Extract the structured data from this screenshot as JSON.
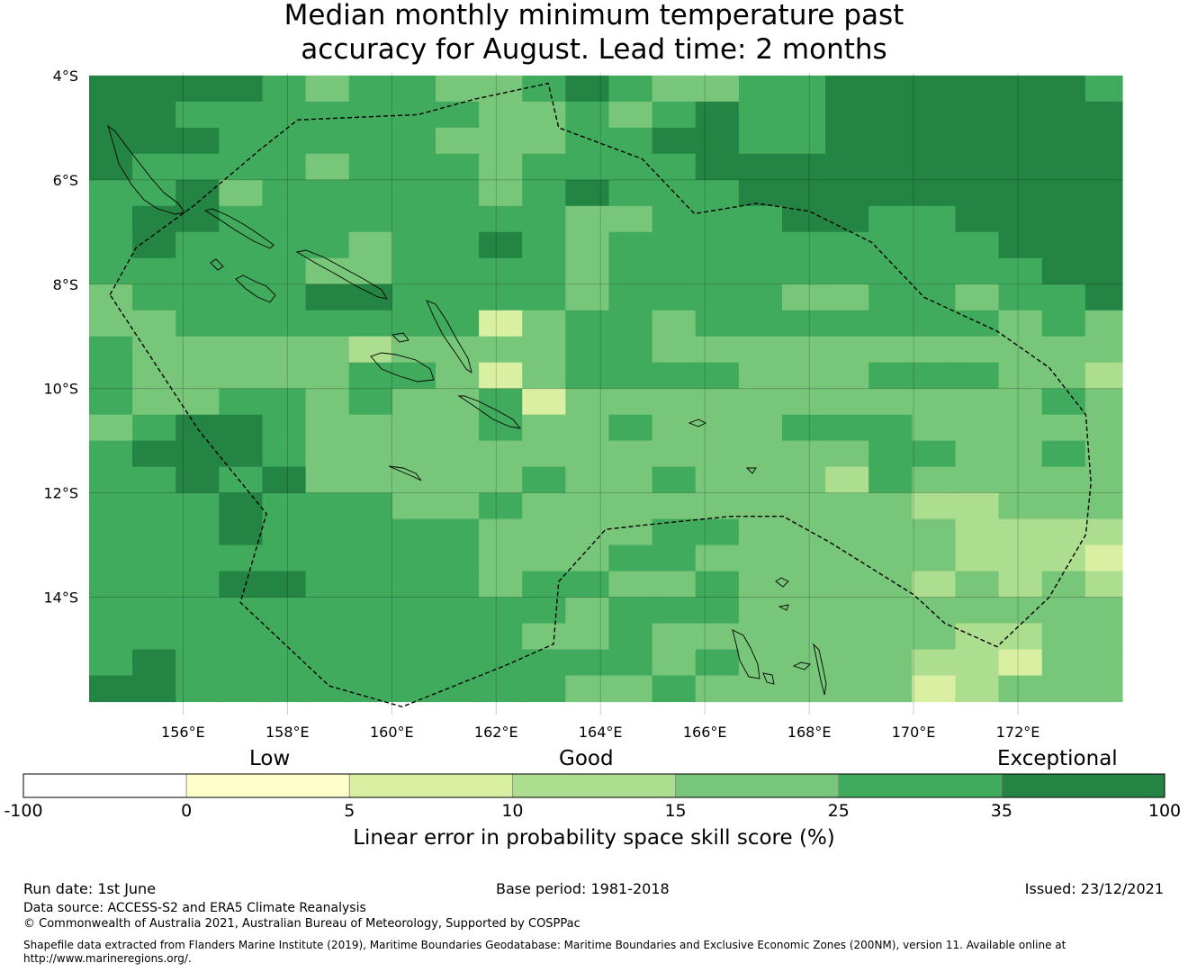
{
  "title_line1": "Median monthly minimum temperature past",
  "title_line2": "accuracy for August. Lead time: 2 months",
  "map": {
    "lon_range": [
      154.2,
      174.0
    ],
    "lat_range": [
      -16.25,
      -3.95
    ],
    "lat_ticks": [
      {
        "value": -4,
        "label": "4°S"
      },
      {
        "value": -6,
        "label": "6°S"
      },
      {
        "value": -8,
        "label": "8°S"
      },
      {
        "value": -10,
        "label": "10°S"
      },
      {
        "value": -12,
        "label": "12°S"
      },
      {
        "value": -14,
        "label": "14°S"
      }
    ],
    "lon_ticks": [
      {
        "value": 156,
        "label": "156°E"
      },
      {
        "value": 158,
        "label": "158°E"
      },
      {
        "value": 160,
        "label": "160°E"
      },
      {
        "value": 162,
        "label": "162°E"
      },
      {
        "value": 164,
        "label": "164°E"
      },
      {
        "value": 166,
        "label": "166°E"
      },
      {
        "value": 168,
        "label": "168°E"
      },
      {
        "value": 170,
        "label": "170°E"
      },
      {
        "value": 172,
        "label": "172°E"
      }
    ],
    "gridlines": true,
    "grid_color": "#000000",
    "eez_boundary": [
      [
        154.6,
        -8.2
      ],
      [
        155.1,
        -7.3
      ],
      [
        156.2,
        -6.5
      ],
      [
        157.5,
        -5.4
      ],
      [
        158.2,
        -4.85
      ],
      [
        160.5,
        -4.75
      ],
      [
        161.6,
        -4.45
      ],
      [
        163.0,
        -4.15
      ],
      [
        163.2,
        -5.0
      ],
      [
        164.8,
        -5.6
      ],
      [
        165.8,
        -6.65
      ],
      [
        167.0,
        -6.45
      ],
      [
        168.0,
        -6.6
      ],
      [
        169.2,
        -7.2
      ],
      [
        170.2,
        -8.25
      ],
      [
        171.6,
        -8.9
      ],
      [
        172.6,
        -9.6
      ],
      [
        173.3,
        -10.5
      ],
      [
        173.4,
        -11.8
      ],
      [
        173.3,
        -12.8
      ],
      [
        172.6,
        -14.0
      ],
      [
        171.6,
        -14.95
      ],
      [
        170.6,
        -14.5
      ],
      [
        170.0,
        -13.95
      ],
      [
        168.4,
        -12.95
      ],
      [
        167.5,
        -12.45
      ],
      [
        166.5,
        -12.45
      ],
      [
        165.0,
        -12.6
      ],
      [
        164.1,
        -12.7
      ],
      [
        163.2,
        -13.7
      ],
      [
        163.1,
        -14.9
      ],
      [
        162.2,
        -15.3
      ],
      [
        160.2,
        -16.1
      ],
      [
        158.8,
        -15.7
      ],
      [
        157.1,
        -14.1
      ],
      [
        157.6,
        -12.4
      ],
      [
        156.3,
        -10.8
      ],
      [
        154.6,
        -8.2
      ]
    ],
    "grid_cells": [
      {
        "lat": -4.25,
        "values": [
          35,
          35,
          35,
          35,
          25,
          15,
          25,
          25,
          15,
          15,
          25,
          35,
          25,
          15,
          15,
          25,
          25,
          35,
          35,
          35,
          35,
          35,
          35,
          25
        ]
      },
      {
        "lat": -4.75,
        "values": [
          35,
          35,
          25,
          25,
          25,
          25,
          25,
          25,
          25,
          15,
          15,
          25,
          15,
          25,
          35,
          25,
          25,
          35,
          35,
          35,
          35,
          35,
          35,
          35
        ]
      },
      {
        "lat": -5.25,
        "values": [
          35,
          35,
          35,
          25,
          25,
          25,
          25,
          25,
          15,
          15,
          15,
          25,
          25,
          35,
          35,
          25,
          25,
          35,
          35,
          35,
          35,
          35,
          35,
          35
        ]
      },
      {
        "lat": -5.75,
        "values": [
          35,
          25,
          25,
          25,
          25,
          15,
          25,
          25,
          25,
          15,
          25,
          25,
          25,
          25,
          35,
          35,
          35,
          35,
          35,
          35,
          35,
          35,
          35,
          35
        ]
      },
      {
        "lat": -6.25,
        "values": [
          25,
          25,
          35,
          15,
          25,
          25,
          25,
          25,
          25,
          15,
          25,
          35,
          25,
          25,
          25,
          35,
          35,
          35,
          35,
          35,
          35,
          35,
          35,
          35
        ]
      },
      {
        "lat": -6.75,
        "values": [
          25,
          35,
          35,
          25,
          25,
          25,
          25,
          25,
          25,
          25,
          25,
          15,
          15,
          25,
          25,
          25,
          35,
          35,
          25,
          25,
          35,
          35,
          35,
          35
        ]
      },
      {
        "lat": -7.25,
        "values": [
          25,
          35,
          25,
          25,
          25,
          25,
          15,
          25,
          25,
          35,
          25,
          15,
          25,
          25,
          25,
          25,
          25,
          25,
          25,
          25,
          25,
          35,
          35,
          35
        ]
      },
      {
        "lat": -7.75,
        "values": [
          25,
          25,
          25,
          25,
          25,
          15,
          15,
          25,
          25,
          25,
          25,
          15,
          25,
          25,
          25,
          25,
          25,
          25,
          25,
          25,
          25,
          25,
          35,
          35
        ]
      },
      {
        "lat": -8.25,
        "values": [
          15,
          25,
          25,
          25,
          25,
          35,
          35,
          25,
          25,
          25,
          25,
          15,
          25,
          25,
          25,
          25,
          15,
          15,
          25,
          25,
          15,
          25,
          25,
          35
        ]
      },
      {
        "lat": -8.75,
        "values": [
          15,
          15,
          25,
          25,
          25,
          25,
          25,
          25,
          25,
          5,
          15,
          25,
          25,
          15,
          25,
          25,
          25,
          25,
          25,
          25,
          25,
          15,
          25,
          15
        ]
      },
      {
        "lat": -9.25,
        "values": [
          25,
          15,
          15,
          15,
          15,
          15,
          10,
          15,
          15,
          15,
          15,
          25,
          25,
          15,
          15,
          15,
          15,
          15,
          15,
          15,
          15,
          15,
          15,
          15
        ]
      },
      {
        "lat": -9.75,
        "values": [
          25,
          15,
          15,
          15,
          15,
          15,
          25,
          25,
          15,
          5,
          15,
          25,
          25,
          25,
          25,
          15,
          15,
          15,
          25,
          25,
          25,
          15,
          15,
          10
        ]
      },
      {
        "lat": -10.25,
        "values": [
          25,
          15,
          15,
          25,
          25,
          15,
          25,
          15,
          15,
          25,
          5,
          15,
          15,
          15,
          15,
          15,
          15,
          15,
          15,
          15,
          15,
          15,
          25,
          15
        ]
      },
      {
        "lat": -10.75,
        "values": [
          15,
          25,
          35,
          35,
          25,
          15,
          15,
          15,
          15,
          25,
          15,
          15,
          25,
          15,
          15,
          15,
          25,
          25,
          25,
          15,
          15,
          15,
          15,
          15
        ]
      },
      {
        "lat": -11.25,
        "values": [
          25,
          35,
          35,
          35,
          25,
          15,
          15,
          15,
          15,
          15,
          15,
          15,
          15,
          15,
          15,
          15,
          15,
          15,
          25,
          25,
          15,
          15,
          25,
          15
        ]
      },
      {
        "lat": -11.75,
        "values": [
          25,
          25,
          35,
          25,
          35,
          15,
          15,
          15,
          15,
          15,
          25,
          15,
          15,
          25,
          15,
          15,
          15,
          10,
          25,
          15,
          15,
          15,
          15,
          15
        ]
      },
      {
        "lat": -12.25,
        "values": [
          25,
          25,
          25,
          35,
          25,
          25,
          25,
          15,
          15,
          25,
          15,
          15,
          15,
          15,
          15,
          15,
          15,
          15,
          15,
          10,
          10,
          15,
          15,
          15
        ]
      },
      {
        "lat": -12.75,
        "values": [
          25,
          25,
          25,
          35,
          25,
          25,
          25,
          25,
          25,
          15,
          15,
          15,
          15,
          25,
          25,
          15,
          15,
          15,
          15,
          15,
          10,
          10,
          10,
          10
        ]
      },
      {
        "lat": -13.25,
        "values": [
          25,
          25,
          25,
          25,
          25,
          25,
          25,
          25,
          25,
          15,
          15,
          15,
          25,
          25,
          15,
          15,
          15,
          15,
          15,
          15,
          10,
          10,
          10,
          5
        ]
      },
      {
        "lat": -13.75,
        "values": [
          25,
          25,
          25,
          35,
          35,
          25,
          25,
          25,
          25,
          15,
          25,
          25,
          15,
          15,
          25,
          15,
          15,
          15,
          15,
          10,
          15,
          10,
          15,
          10
        ]
      },
      {
        "lat": -14.25,
        "values": [
          25,
          25,
          25,
          25,
          25,
          25,
          25,
          25,
          25,
          25,
          25,
          15,
          25,
          25,
          25,
          15,
          15,
          15,
          15,
          15,
          15,
          15,
          15,
          15
        ]
      },
      {
        "lat": -14.75,
        "values": [
          25,
          25,
          25,
          25,
          25,
          25,
          25,
          25,
          25,
          25,
          15,
          15,
          25,
          15,
          15,
          15,
          15,
          15,
          15,
          15,
          10,
          10,
          15,
          15
        ]
      },
      {
        "lat": -15.25,
        "values": [
          25,
          35,
          25,
          25,
          25,
          25,
          25,
          25,
          25,
          25,
          25,
          25,
          25,
          15,
          25,
          15,
          15,
          15,
          15,
          10,
          10,
          5,
          15,
          15
        ]
      },
      {
        "lat": -15.75,
        "values": [
          35,
          35,
          25,
          25,
          25,
          25,
          25,
          25,
          25,
          25,
          25,
          15,
          15,
          25,
          15,
          15,
          15,
          15,
          15,
          5,
          10,
          15,
          15,
          15
        ]
      }
    ],
    "grid_lon_start": 154.2,
    "grid_cell_size": 0.83
  },
  "categories": {
    "low": "Low",
    "good": "Good",
    "exceptional": "Exceptional"
  },
  "colorbar": {
    "bins": [
      {
        "from": -100,
        "to": 0,
        "color": "#ffffff"
      },
      {
        "from": 0,
        "to": 5,
        "color": "#ffffcc"
      },
      {
        "from": 5,
        "to": 10,
        "color": "#d9f0a3"
      },
      {
        "from": 10,
        "to": 15,
        "color": "#addd8e"
      },
      {
        "from": 15,
        "to": 25,
        "color": "#78c679"
      },
      {
        "from": 25,
        "to": 35,
        "color": "#41ab5d"
      },
      {
        "from": 35,
        "to": 100,
        "color": "#238443"
      }
    ],
    "tick_labels": [
      "-100",
      "0",
      "5",
      "10",
      "15",
      "25",
      "35",
      "100"
    ],
    "title": "Linear error in probability space skill score (%)"
  },
  "footer": {
    "run_date": "Run date: 1st June",
    "base_period": "Base period: 1981-2018",
    "issued": "Issued: 23/12/2021",
    "data_source": "Data source: ACCESS-S2 and ERA5 Climate Reanalysis",
    "copyright": "© Commonwealth of Australia 2021, Australian Bureau of Meteorology, Supported by COSPPac",
    "shapefile_line1": "Shapefile data extracted from Flanders Marine Institute (2019), Maritime Boundaries Geodatabase: Maritime Boundaries and Exclusive Economic Zones (200NM), version 11. Available online at",
    "shapefile_line2": "http://www.marineregions.org/."
  }
}
